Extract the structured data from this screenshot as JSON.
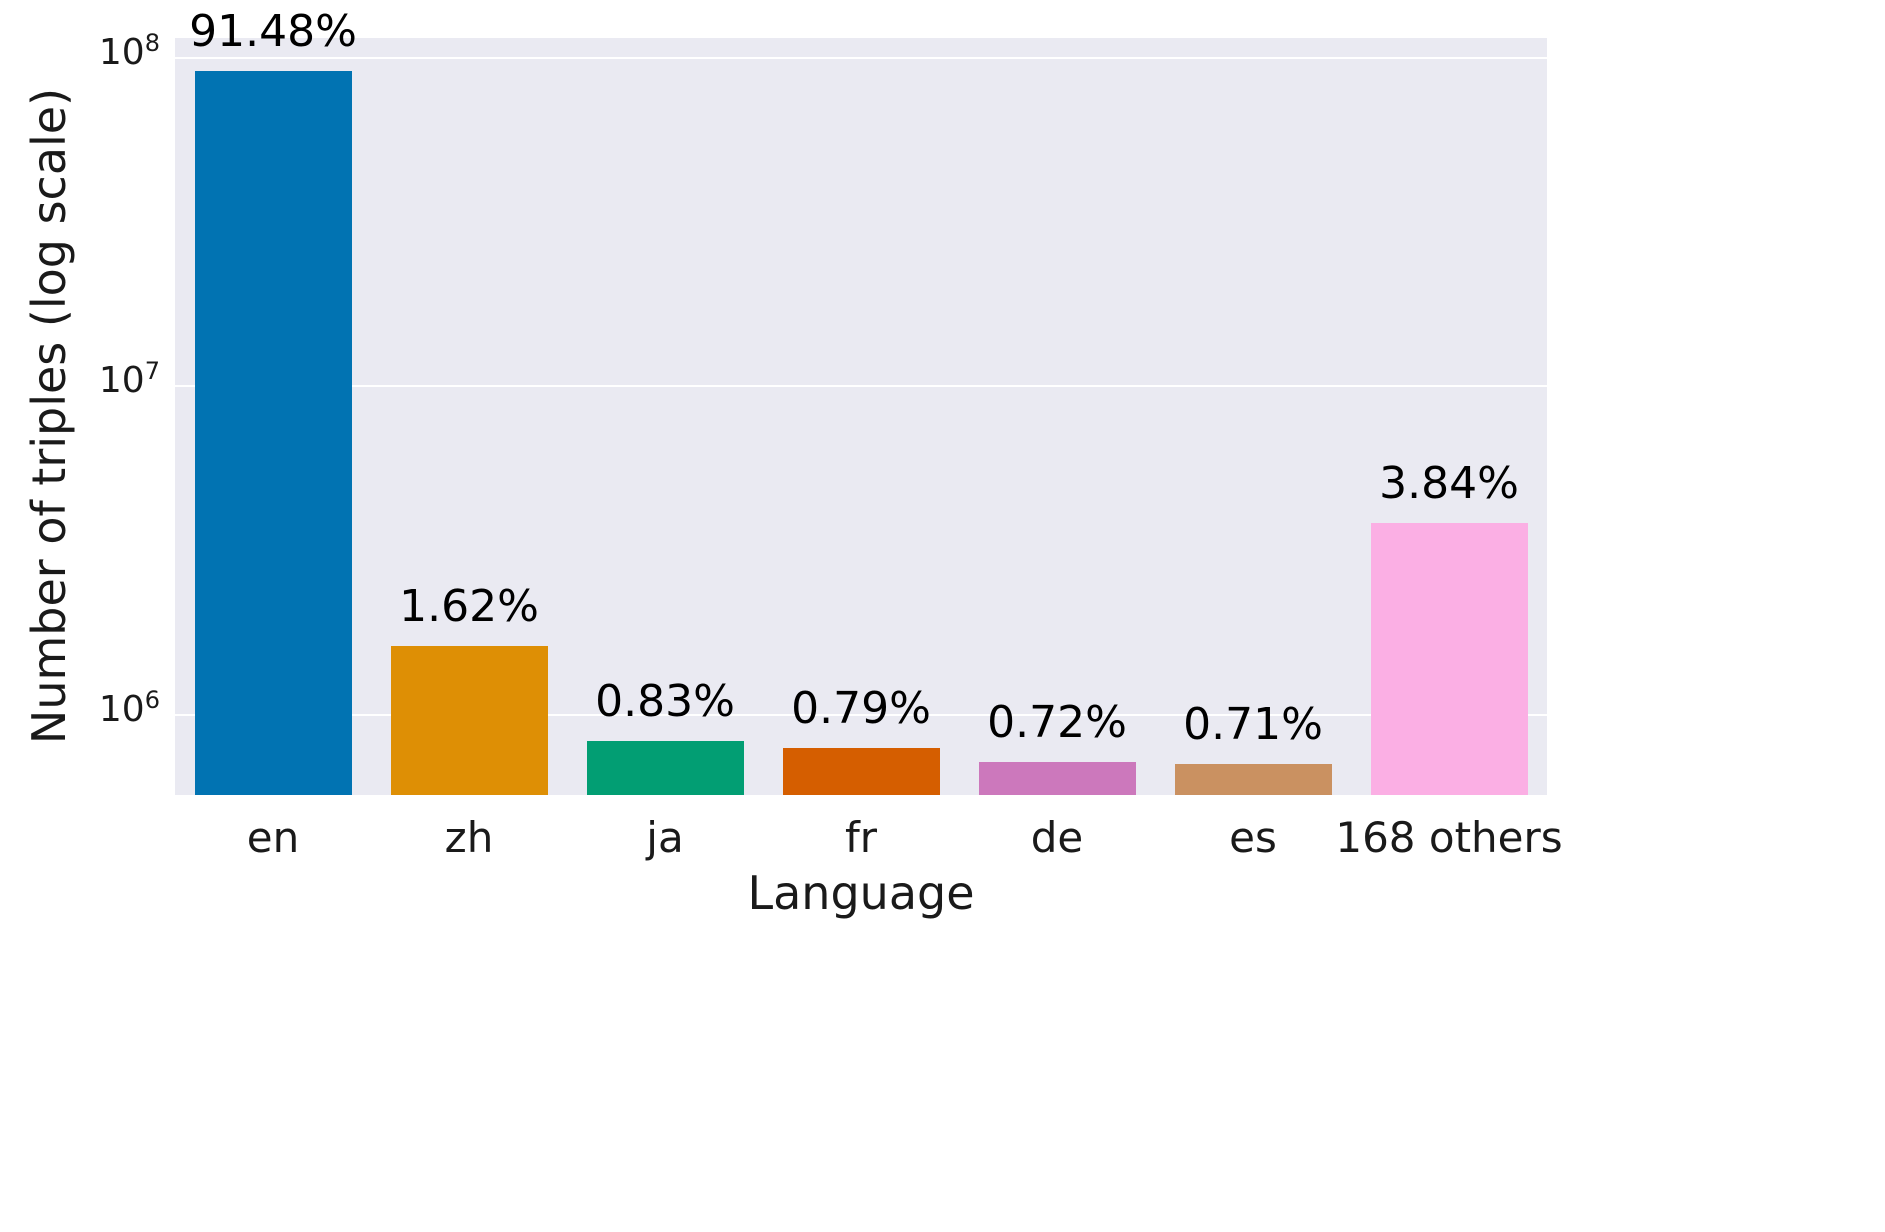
{
  "chart_data": {
    "type": "bar",
    "xlabel": "Language",
    "ylabel": "Number of triples (log scale)",
    "yscale": "log",
    "ylim": [
      570000,
      115000000
    ],
    "categories": [
      "en",
      "zh",
      "ja",
      "fr",
      "de",
      "es",
      "168 others"
    ],
    "values": [
      91480000,
      1620000,
      830000,
      790000,
      720000,
      710000,
      3840000
    ],
    "bar_labels": [
      "91.48%",
      "1.62%",
      "0.83%",
      "0.79%",
      "0.72%",
      "0.71%",
      "3.84%"
    ],
    "bar_colors": [
      "#0173b2",
      "#de8f05",
      "#029e73",
      "#d55e00",
      "#cc78bc",
      "#ca9161",
      "#fbafe4"
    ],
    "yticks": [
      {
        "base": "10",
        "exp": "6",
        "value": 1000000
      },
      {
        "base": "10",
        "exp": "7",
        "value": 10000000
      },
      {
        "base": "10",
        "exp": "8",
        "value": 100000000
      }
    ],
    "grid": true,
    "grid_color": "#ffffff",
    "plot_background": "#eaeaf2",
    "legend": "none"
  }
}
